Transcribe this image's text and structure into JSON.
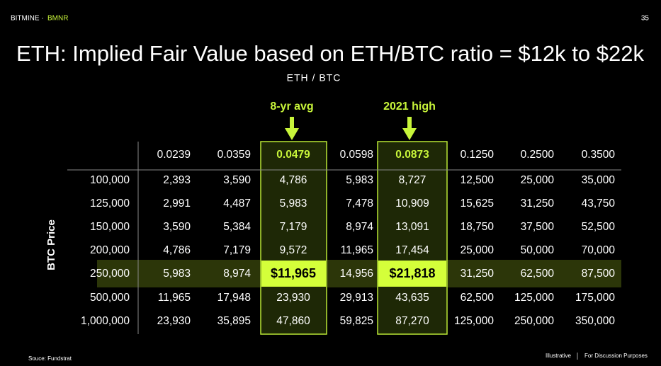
{
  "header": {
    "brand": "BITMINE ·",
    "ticker": "BMNR",
    "page": "35"
  },
  "title": "ETH: Implied Fair Value based on ETH/BTC ratio = $12k to $22k",
  "subtitle": "ETH / BTC",
  "annotations": [
    "8-yr avg",
    "2021 high"
  ],
  "y_label": "BTC Price",
  "table": {
    "columns": [
      "0.0239",
      "0.0359",
      "0.0479",
      "0.0598",
      "0.0873",
      "0.1250",
      "0.2500",
      "0.3500"
    ],
    "rows": [
      [
        "100,000",
        "2,393",
        "3,590",
        "4,786",
        "5,983",
        "8,727",
        "12,500",
        "25,000",
        "35,000"
      ],
      [
        "125,000",
        "2,991",
        "4,487",
        "5,983",
        "7,478",
        "10,909",
        "15,625",
        "31,250",
        "43,750"
      ],
      [
        "150,000",
        "3,590",
        "5,384",
        "7,179",
        "8,974",
        "13,091",
        "18,750",
        "37,500",
        "52,500"
      ],
      [
        "200,000",
        "4,786",
        "7,179",
        "9,572",
        "11,965",
        "17,454",
        "25,000",
        "50,000",
        "70,000"
      ],
      [
        "250,000",
        "5,983",
        "8,974",
        "$11,965",
        "14,956",
        "$21,818",
        "31,250",
        "62,500",
        "87,500"
      ],
      [
        "500,000",
        "11,965",
        "17,948",
        "23,930",
        "29,913",
        "43,635",
        "62,500",
        "125,000",
        "175,000"
      ],
      [
        "1,000,000",
        "23,930",
        "35,895",
        "47,860",
        "59,825",
        "87,270",
        "125,000",
        "250,000",
        "350,000"
      ]
    ]
  },
  "footer": {
    "source": "Souce: Fundstrat",
    "note_left": "Illustrative",
    "note_right": "For Discussion Purposes"
  }
}
